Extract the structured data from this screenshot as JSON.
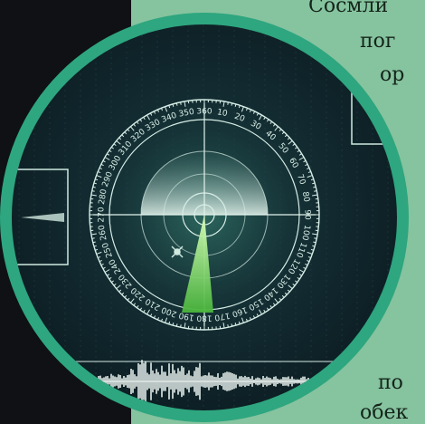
{
  "colors": {
    "panel": "#86c39f",
    "ring": "#2ea67f",
    "screen": "#10262c",
    "sweep": "#7ed56c",
    "text": "#14251b"
  },
  "text_fragments": [
    {
      "id": "frag-1",
      "text": "Сосмли"
    },
    {
      "id": "frag-2",
      "text": "пог"
    },
    {
      "id": "frag-3",
      "text": "ор"
    },
    {
      "id": "frag-4",
      "text": "по"
    },
    {
      "id": "frag-5",
      "text": "обек"
    }
  ],
  "radar": {
    "dial_labels": [
      "360",
      "10",
      "20",
      "30",
      "40",
      "50",
      "60",
      "70",
      "80",
      "90",
      "100",
      "110",
      "120",
      "130",
      "140",
      "150",
      "160",
      "170",
      "180",
      "190",
      "200",
      "210",
      "220",
      "230",
      "240",
      "250",
      "260",
      "270",
      "280",
      "290",
      "300",
      "310",
      "320",
      "330",
      "340",
      "350"
    ],
    "icons": [
      "radar-screen-icon",
      "target-marker-icon",
      "audio-waveform-icon"
    ]
  }
}
